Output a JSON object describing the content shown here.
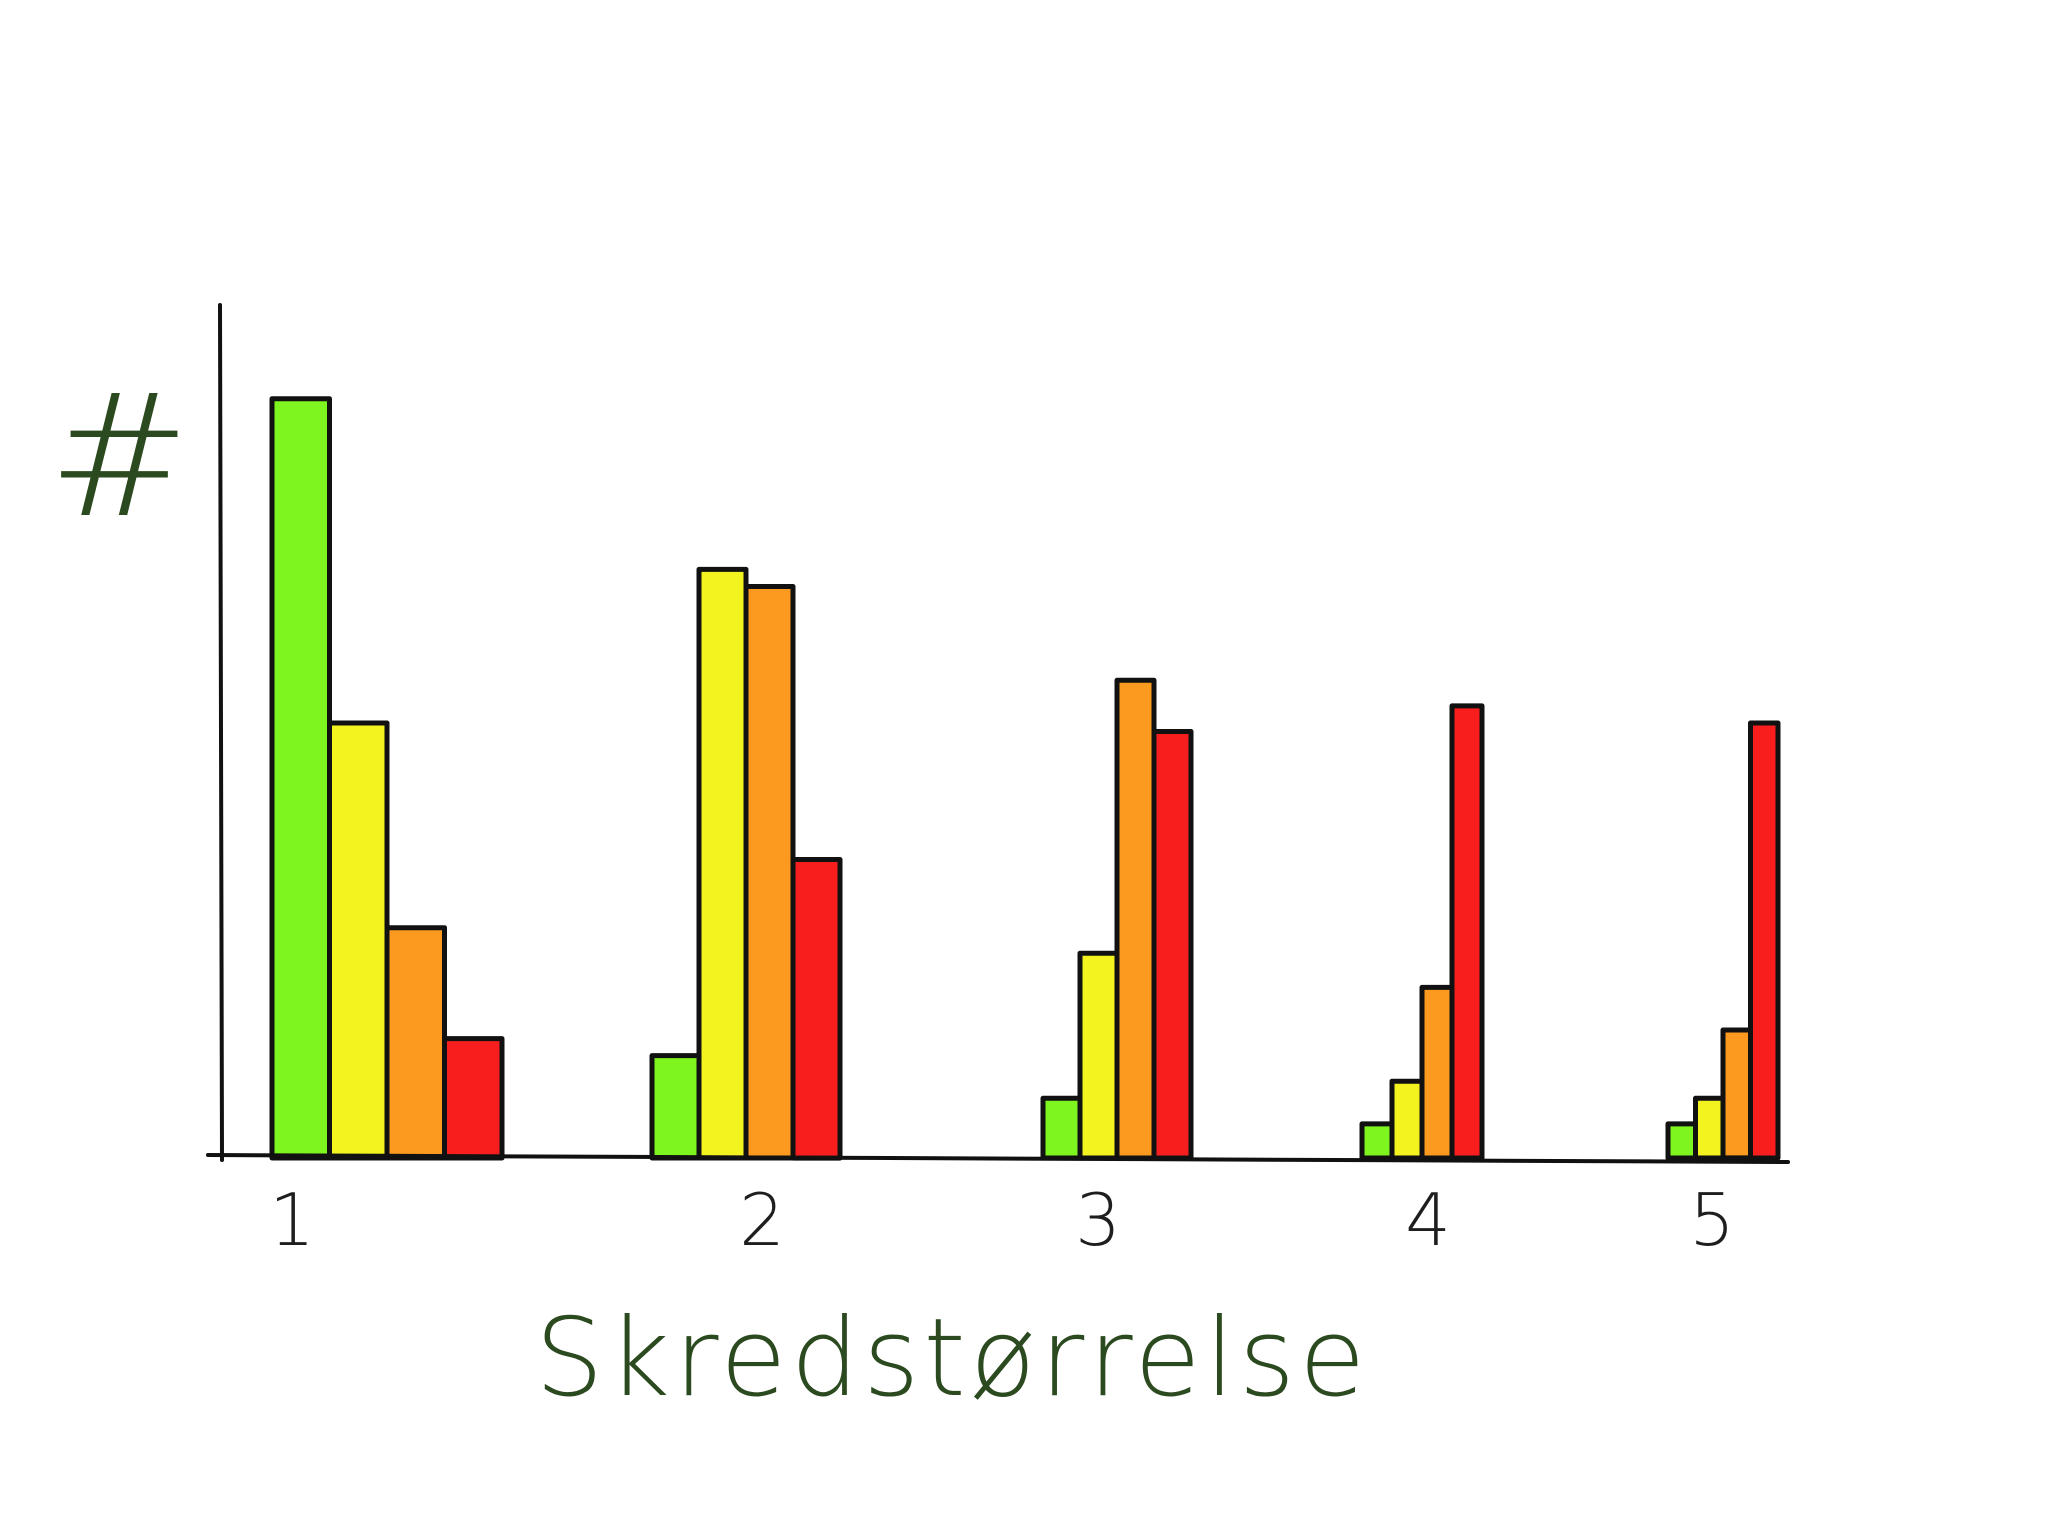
{
  "chart_data": {
    "type": "bar",
    "xlabel": "Skredstørrelse",
    "ylabel": "#",
    "categories": [
      "1",
      "2",
      "3",
      "4",
      "5"
    ],
    "ylim": [
      0,
      10
    ],
    "grid": false,
    "legend": "none",
    "colors": [
      "#7ff51f",
      "#f3f320",
      "#fb9a1e",
      "#f91e1e"
    ],
    "series": [
      {
        "values": [
          8.9,
          1.2,
          0.7,
          0.4,
          0.4
        ]
      },
      {
        "values": [
          5.1,
          6.9,
          2.4,
          0.9,
          0.7
        ]
      },
      {
        "values": [
          2.7,
          6.7,
          5.6,
          2.0,
          1.5
        ]
      },
      {
        "values": [
          1.4,
          3.5,
          5.0,
          5.3,
          5.1
        ]
      }
    ]
  }
}
